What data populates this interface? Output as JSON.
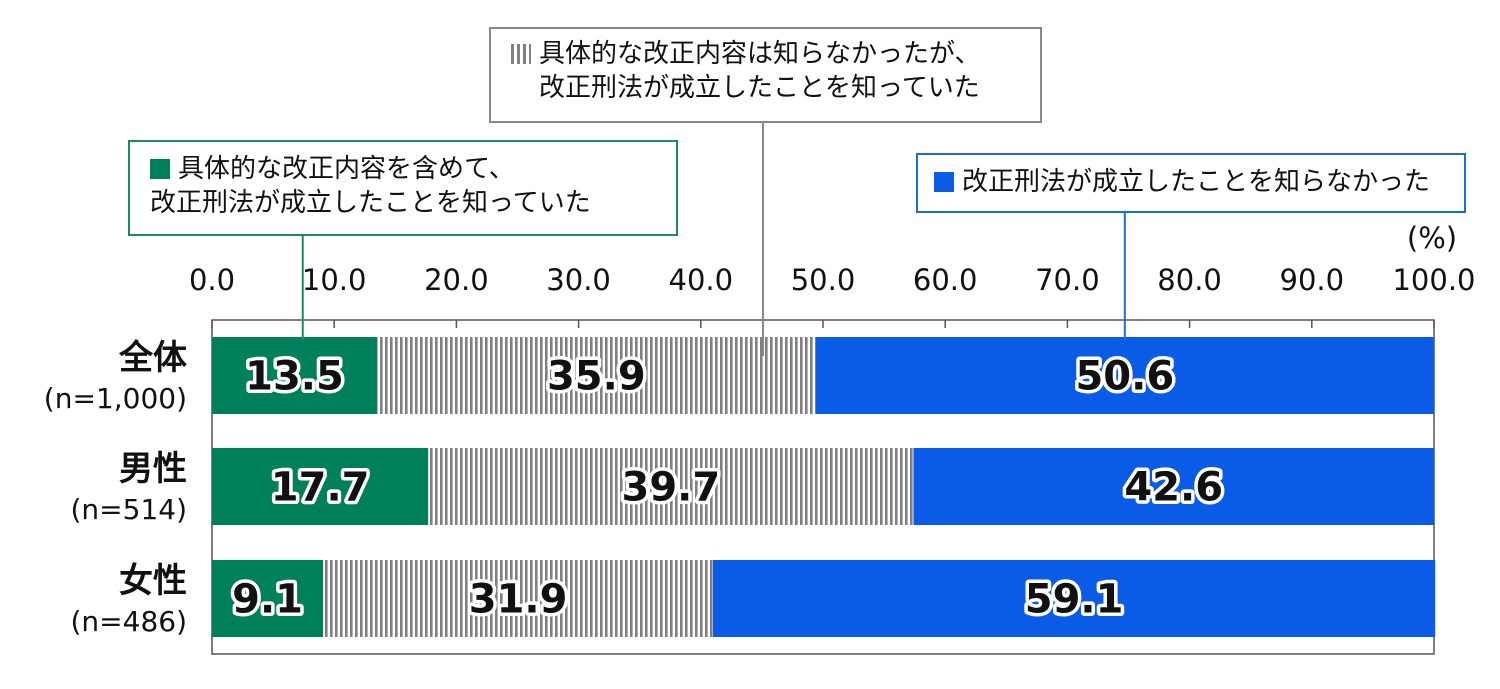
{
  "chart_data": {
    "type": "bar",
    "orientation": "horizontal",
    "stacked": true,
    "unit_label": "(%)",
    "xlim": [
      0,
      100
    ],
    "x_ticks": [
      "0.0",
      "10.0",
      "20.0",
      "30.0",
      "40.0",
      "50.0",
      "60.0",
      "70.0",
      "80.0",
      "90.0",
      "100.0"
    ],
    "categories": [
      {
        "label": "全体",
        "sub": "(n=1,000)"
      },
      {
        "label": "男性",
        "sub": "(n=514)"
      },
      {
        "label": "女性",
        "sub": "(n=486)"
      }
    ],
    "series": [
      {
        "name": "具体的な改正内容を含めて、改正刑法が成立したことを知っていた",
        "name_lines": [
          "具体的な改正内容を含めて、",
          "改正刑法が成立したことを知っていた"
        ],
        "color": "#00805a",
        "pattern": "solid",
        "values": [
          13.5,
          17.7,
          9.1
        ]
      },
      {
        "name": "具体的な改正内容は知らなかったが、改正刑法が成立したことを知っていた",
        "name_lines": [
          "具体的な改正内容は知らなかったが、",
          "改正刑法が成立したことを知っていた"
        ],
        "color": "#808080",
        "pattern": "vertical-stripes",
        "values": [
          35.9,
          39.7,
          31.9
        ]
      },
      {
        "name": "改正刑法が成立したことを知らなかった",
        "name_lines": [
          "改正刑法が成立したことを知らなかった"
        ],
        "color": "#0a5ce6",
        "pattern": "solid",
        "values": [
          50.6,
          42.6,
          59.1
        ]
      }
    ],
    "legend_placement": "top"
  }
}
